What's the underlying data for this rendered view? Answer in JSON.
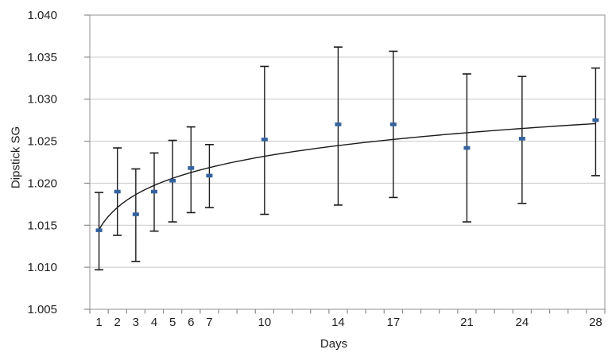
{
  "chart_data": {
    "type": "scatter",
    "title": "",
    "xlabel": "Days",
    "ylabel": "Dipstick SG",
    "ylim": [
      1.005,
      1.04
    ],
    "y_tick_step": 0.005,
    "y_tick_labels": [
      "1.005",
      "1.010",
      "1.015",
      "1.020",
      "1.025",
      "1.030",
      "1.035",
      "1.040"
    ],
    "x_categories": 28,
    "x_minor_tick_interval": 1,
    "labeled_days": [
      1,
      2,
      3,
      4,
      5,
      6,
      7,
      10,
      14,
      17,
      21,
      24,
      28
    ],
    "grid": "horizontal",
    "legend": "none",
    "series": [
      {
        "name": "Dipstick SG",
        "marker": "dash",
        "marker_color": "#34629f",
        "error_bar_color": "#1a1a1a",
        "points": [
          {
            "day": 1,
            "value": 1.0144,
            "err_low": 1.0097,
            "err_high": 1.0189
          },
          {
            "day": 2,
            "value": 1.019,
            "err_low": 1.0138,
            "err_high": 1.0242
          },
          {
            "day": 3,
            "value": 1.0163,
            "err_low": 1.0107,
            "err_high": 1.0217
          },
          {
            "day": 4,
            "value": 1.019,
            "err_low": 1.0143,
            "err_high": 1.0236
          },
          {
            "day": 5,
            "value": 1.0203,
            "err_low": 1.0154,
            "err_high": 1.0251
          },
          {
            "day": 6,
            "value": 1.0218,
            "err_low": 1.0165,
            "err_high": 1.0267
          },
          {
            "day": 7,
            "value": 1.0209,
            "err_low": 1.0171,
            "err_high": 1.0246
          },
          {
            "day": 10,
            "value": 1.0252,
            "err_low": 1.0163,
            "err_high": 1.0339
          },
          {
            "day": 14,
            "value": 1.027,
            "err_low": 1.0174,
            "err_high": 1.0362
          },
          {
            "day": 17,
            "value": 1.027,
            "err_low": 1.0183,
            "err_high": 1.0357
          },
          {
            "day": 21,
            "value": 1.0242,
            "err_low": 1.0154,
            "err_high": 1.033
          },
          {
            "day": 24,
            "value": 1.0253,
            "err_low": 1.0176,
            "err_high": 1.0327
          },
          {
            "day": 28,
            "value": 1.0275,
            "err_low": 1.0209,
            "err_high": 1.0337
          }
        ]
      }
    ],
    "trendline": {
      "type": "logarithmic",
      "intercept": 1.0145,
      "ln_coef": 0.00378,
      "color": "#1a1a1a"
    },
    "colors": {
      "gridline": "#c9c9c9",
      "axis_border": "#a3a3a3",
      "tick": "#8c8c8c",
      "text": "#1f1f1f",
      "plot_bg": "#ffffff"
    }
  }
}
